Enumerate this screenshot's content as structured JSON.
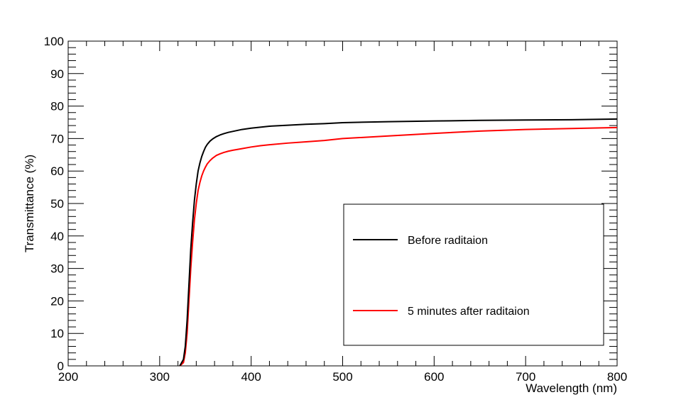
{
  "chart_data": {
    "type": "line",
    "title": "",
    "xlabel": "Wavelength (nm)",
    "ylabel": "Transmittance (%)",
    "xlim": [
      200,
      800
    ],
    "ylim": [
      0,
      100
    ],
    "x_ticks": [
      "200",
      "300",
      "400",
      "500",
      "600",
      "700",
      "800"
    ],
    "y_ticks": [
      "0",
      "10",
      "20",
      "30",
      "40",
      "50",
      "60",
      "70",
      "80",
      "90",
      "100"
    ],
    "grid": false,
    "legend_position": "bottom-right",
    "series": [
      {
        "name": "Before raditaion",
        "color": "#000000",
        "x": [
          322,
          326,
          328,
          330,
          332,
          334,
          336,
          338,
          340,
          342,
          344,
          346,
          348,
          350,
          352,
          355,
          358,
          362,
          366,
          370,
          375,
          380,
          390,
          400,
          410,
          420,
          440,
          460,
          480,
          500,
          550,
          600,
          650,
          700,
          750,
          800
        ],
        "y": [
          0,
          2,
          6,
          14,
          25,
          36,
          44,
          51,
          56,
          60,
          62.5,
          64.5,
          66,
          67.3,
          68.2,
          69.2,
          69.9,
          70.6,
          71.1,
          71.5,
          71.9,
          72.2,
          72.8,
          73.2,
          73.5,
          73.8,
          74.1,
          74.4,
          74.6,
          74.9,
          75.2,
          75.4,
          75.6,
          75.7,
          75.8,
          76.0
        ]
      },
      {
        "name": "5 minutes after raditaion",
        "color": "#ff0000",
        "x": [
          322,
          326,
          328,
          330,
          332,
          334,
          336,
          338,
          340,
          342,
          344,
          346,
          348,
          350,
          352,
          355,
          358,
          362,
          366,
          370,
          375,
          380,
          390,
          400,
          410,
          420,
          440,
          460,
          480,
          500,
          550,
          600,
          650,
          700,
          750,
          800
        ],
        "y": [
          0,
          1,
          4,
          10,
          20,
          30,
          38,
          45,
          50,
          54,
          56.5,
          58.5,
          60,
          61.2,
          62.2,
          63.2,
          64,
          64.8,
          65.3,
          65.7,
          66.1,
          66.4,
          66.9,
          67.4,
          67.8,
          68.1,
          68.6,
          69.0,
          69.4,
          70.0,
          70.8,
          71.6,
          72.3,
          72.8,
          73.1,
          73.4
        ]
      }
    ]
  }
}
